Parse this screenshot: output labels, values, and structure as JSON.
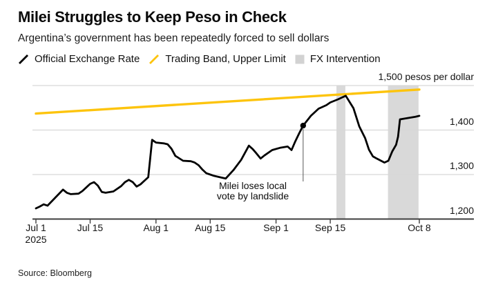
{
  "header": {
    "title": "Milei Struggles to Keep Peso in Check",
    "subtitle": "Argentina’s government has been repeatedly forced to sell dollars"
  },
  "legend": {
    "items": [
      {
        "label": "Official Exchange Rate",
        "icon": "black-line-icon"
      },
      {
        "label": "Trading Band, Upper Limit",
        "icon": "yellow-line-icon"
      },
      {
        "label": "FX Intervention",
        "icon": "gray-area-icon"
      }
    ]
  },
  "footer": {
    "source": "Source: Bloomberg"
  },
  "colors": {
    "official_rate": "#000000",
    "trading_band": "#fdc40d",
    "fx_band": "#d9d9d9",
    "legend_square": "#d2d2d2",
    "gridline": "#d7d7d7",
    "axis": "#3d3d3d",
    "annotation_line": "#555555"
  },
  "chart_data": {
    "type": "line",
    "title": "Milei Struggles to Keep Peso in Check",
    "subtitle": "Argentina’s government has been repeatedly forced to sell dollars",
    "x_axis": {
      "unit": "days since Jul 1, 2025",
      "range": [
        0,
        99
      ],
      "ticks": [
        {
          "day": 0,
          "label": "Jul 1",
          "sublabel": "2025"
        },
        {
          "day": 14,
          "label": "Jul 15"
        },
        {
          "day": 31,
          "label": "Aug 1"
        },
        {
          "day": 45,
          "label": "Aug 15"
        },
        {
          "day": 62,
          "label": "Sep 1"
        },
        {
          "day": 76,
          "label": "Sep 15"
        },
        {
          "day": 99,
          "label": "Oct 8"
        }
      ]
    },
    "y_axis": {
      "unit": "pesos per dollar",
      "range": [
        1200,
        1500
      ],
      "ticks": [
        {
          "value": 1500,
          "label": "1,500 pesos per dollar"
        },
        {
          "value": 1400,
          "label": "1,400"
        },
        {
          "value": 1300,
          "label": "1,300"
        },
        {
          "value": 1200,
          "label": "1,200"
        }
      ]
    },
    "series": [
      {
        "name": "Official Exchange Rate",
        "type": "line",
        "color": "#000000",
        "points": [
          [
            0,
            1224
          ],
          [
            1,
            1228
          ],
          [
            2,
            1233
          ],
          [
            3,
            1230
          ],
          [
            5,
            1248
          ],
          [
            7,
            1266
          ],
          [
            8,
            1259
          ],
          [
            9,
            1256
          ],
          [
            11,
            1257
          ],
          [
            12,
            1263
          ],
          [
            13,
            1271
          ],
          [
            14,
            1279
          ],
          [
            15,
            1283
          ],
          [
            16,
            1275
          ],
          [
            17,
            1261
          ],
          [
            18,
            1259
          ],
          [
            20,
            1262
          ],
          [
            22,
            1274
          ],
          [
            23,
            1283
          ],
          [
            24,
            1288
          ],
          [
            25,
            1283
          ],
          [
            26,
            1273
          ],
          [
            27,
            1278
          ],
          [
            28,
            1286
          ],
          [
            29,
            1294
          ],
          [
            30,
            1378
          ],
          [
            31,
            1372
          ],
          [
            33,
            1370
          ],
          [
            34,
            1368
          ],
          [
            35,
            1358
          ],
          [
            36,
            1342
          ],
          [
            38,
            1331
          ],
          [
            40,
            1330
          ],
          [
            41,
            1327
          ],
          [
            42,
            1321
          ],
          [
            43,
            1311
          ],
          [
            44,
            1303
          ],
          [
            45,
            1300
          ],
          [
            46,
            1297
          ],
          [
            48,
            1293
          ],
          [
            49,
            1291
          ],
          [
            51,
            1310
          ],
          [
            53,
            1333
          ],
          [
            55,
            1365
          ],
          [
            56,
            1357
          ],
          [
            57,
            1347
          ],
          [
            58,
            1336
          ],
          [
            59,
            1343
          ],
          [
            61,
            1355
          ],
          [
            63,
            1360
          ],
          [
            65,
            1363
          ],
          [
            66,
            1355
          ],
          [
            67,
            1375
          ],
          [
            68,
            1393
          ],
          [
            69,
            1410
          ],
          [
            70,
            1421
          ],
          [
            71,
            1432
          ],
          [
            73,
            1448
          ],
          [
            74,
            1452
          ],
          [
            75,
            1456
          ],
          [
            76,
            1462
          ],
          [
            78,
            1469
          ],
          [
            79,
            1473
          ],
          [
            80,
            1477
          ],
          [
            82,
            1449
          ],
          [
            83.5,
            1408
          ],
          [
            85,
            1382
          ],
          [
            86,
            1356
          ],
          [
            87,
            1341
          ],
          [
            88,
            1336
          ],
          [
            90,
            1327
          ],
          [
            91,
            1331
          ],
          [
            92,
            1352
          ],
          [
            93,
            1367
          ],
          [
            93.5,
            1385
          ],
          [
            94,
            1424
          ],
          [
            96,
            1427
          ],
          [
            98,
            1430
          ],
          [
            99,
            1432
          ]
        ]
      },
      {
        "name": "Trading Band, Upper Limit",
        "type": "line",
        "color": "#fdc40d",
        "points": [
          [
            0,
            1437
          ],
          [
            99,
            1491
          ]
        ]
      }
    ],
    "fx_intervention_bands": [
      {
        "start_day": 77.6,
        "end_day": 79.9
      },
      {
        "start_day": 90.9,
        "end_day": 98.8
      }
    ],
    "annotation": {
      "lines": [
        "Milei loses local",
        "vote by landslide"
      ],
      "day": 69,
      "value": 1410
    }
  }
}
